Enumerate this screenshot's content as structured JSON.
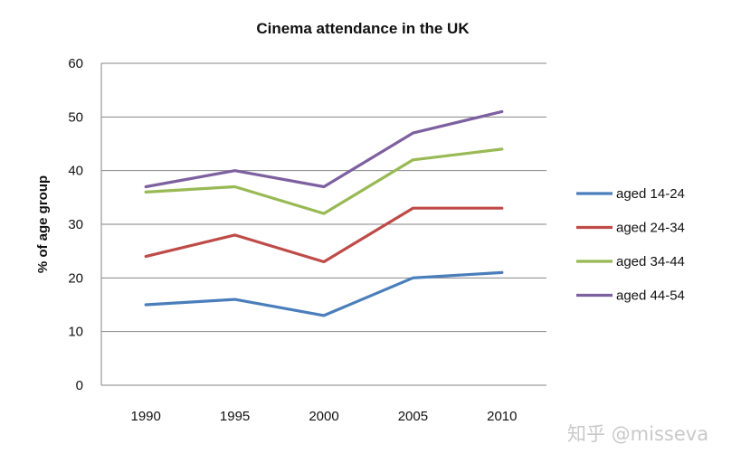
{
  "watermark": "知乎 @misseva",
  "chart_data": {
    "type": "line",
    "title": "Cinema attendance in the UK",
    "xlabel": "",
    "ylabel": "% of age group",
    "categories": [
      "1990",
      "1995",
      "2000",
      "2005",
      "2010"
    ],
    "ylim": [
      0,
      60
    ],
    "yticks": [
      0,
      10,
      20,
      30,
      40,
      50,
      60
    ],
    "grid": true,
    "legend_position": "right",
    "series": [
      {
        "name": "aged 14-24",
        "color": "#4A7EBB",
        "values": [
          15,
          16,
          13,
          20,
          21
        ]
      },
      {
        "name": "aged 24-34",
        "color": "#BE4B48",
        "values": [
          24,
          28,
          23,
          33,
          33
        ]
      },
      {
        "name": "aged 34-44",
        "color": "#98B954",
        "values": [
          36,
          37,
          32,
          42,
          44
        ]
      },
      {
        "name": "aged 44-54",
        "color": "#7D60A0",
        "values": [
          37,
          40,
          37,
          47,
          51
        ]
      }
    ]
  }
}
